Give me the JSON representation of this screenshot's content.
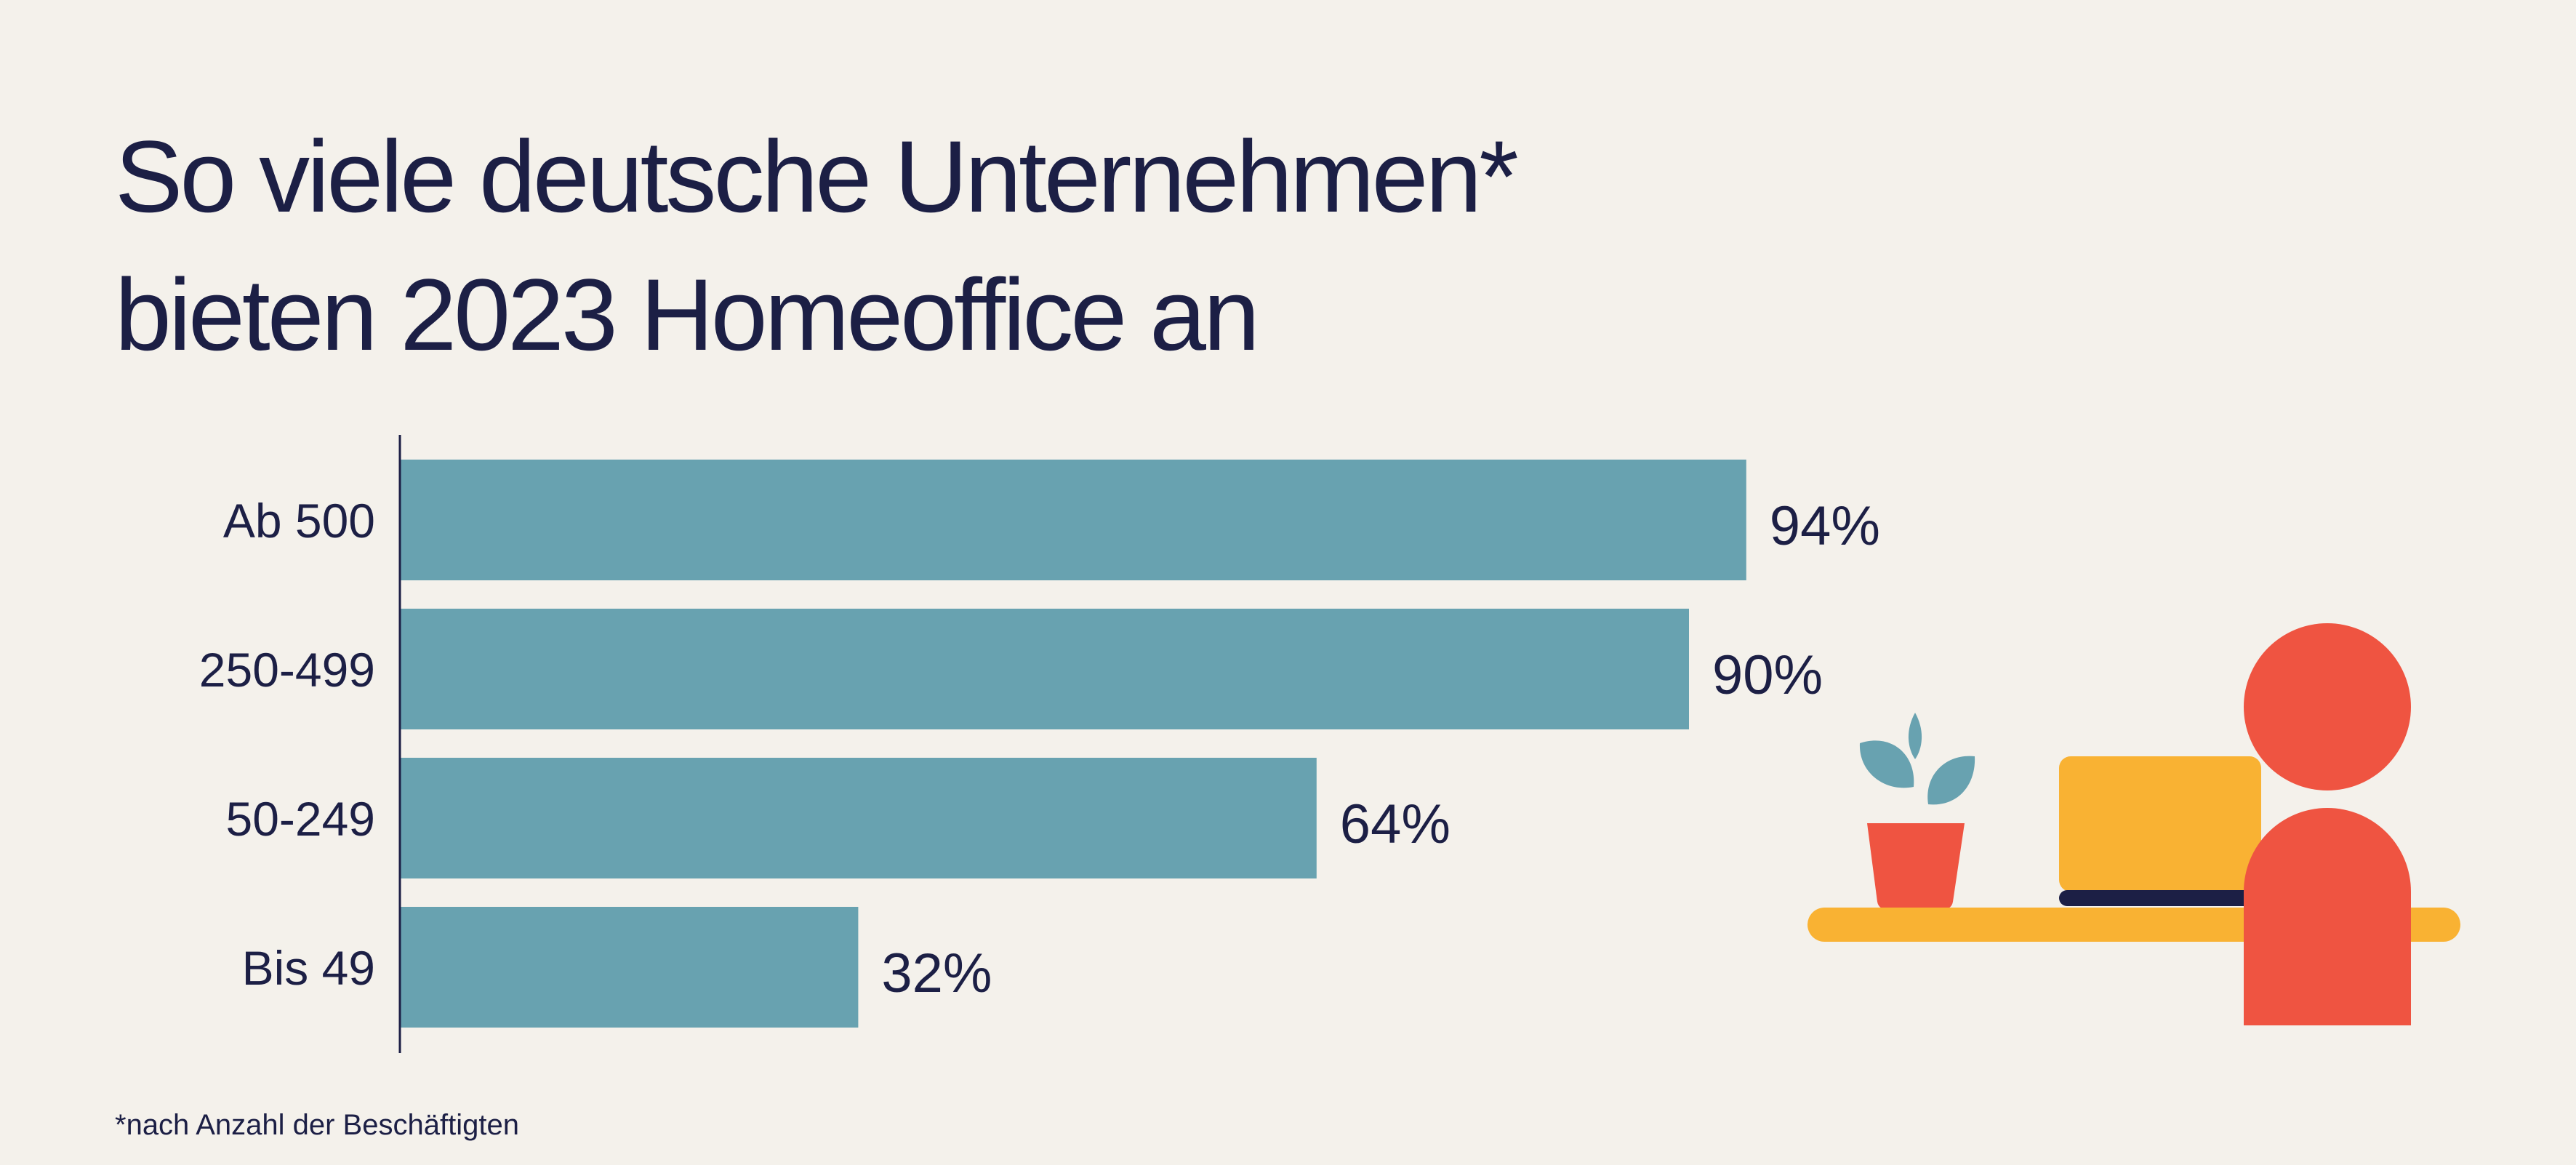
{
  "title_lines": [
    "So viele deutsche Unternehmen*",
    "bieten 2023 Homeoffice an"
  ],
  "footnote": "*nach Anzahl der Beschäftigten",
  "colors": {
    "background": "#f4f1eb",
    "bar": "#68a2b0",
    "text": "#1c1f45",
    "axis": "#1c1f45",
    "plant_leaves": "#68a2b0",
    "pot": "#ef5441",
    "laptop": "#f9b233",
    "laptop_base": "#1c1f45",
    "desk": "#f9b233",
    "person": "#ef5441"
  },
  "illustration": {
    "icons": [
      "potted-plant-icon",
      "laptop-icon",
      "desk-icon",
      "person-icon"
    ]
  },
  "chart_data": {
    "type": "bar",
    "orientation": "horizontal",
    "title": "So viele deutsche Unternehmen* bieten 2023 Homeoffice an",
    "categories": [
      "Ab 500",
      "250-499",
      "50-249",
      "Bis 49"
    ],
    "values": [
      94,
      90,
      64,
      32
    ],
    "value_labels": [
      "94%",
      "90%",
      "64%",
      "32%"
    ],
    "unit": "%",
    "xlim": [
      0,
      100
    ],
    "xlabel": "",
    "ylabel": "",
    "grid": false,
    "legend": "none"
  }
}
